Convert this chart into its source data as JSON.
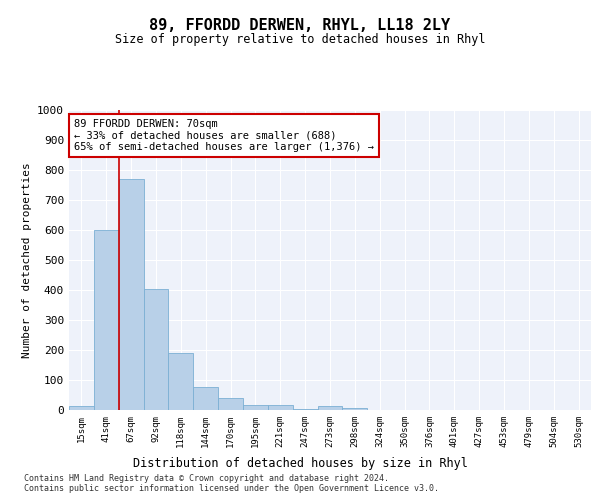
{
  "title": "89, FFORDD DERWEN, RHYL, LL18 2LY",
  "subtitle": "Size of property relative to detached houses in Rhyl",
  "xlabel": "Distribution of detached houses by size in Rhyl",
  "ylabel": "Number of detached properties",
  "categories": [
    "15sqm",
    "41sqm",
    "67sqm",
    "92sqm",
    "118sqm",
    "144sqm",
    "170sqm",
    "195sqm",
    "221sqm",
    "247sqm",
    "273sqm",
    "298sqm",
    "324sqm",
    "350sqm",
    "376sqm",
    "401sqm",
    "427sqm",
    "453sqm",
    "479sqm",
    "504sqm",
    "530sqm"
  ],
  "values": [
    15,
    600,
    770,
    405,
    190,
    77,
    40,
    18,
    16,
    5,
    13,
    7,
    0,
    0,
    0,
    0,
    0,
    0,
    0,
    0,
    0
  ],
  "bar_color": "#b8d0e8",
  "bar_edge_color": "#7bafd4",
  "vline_pos": 1.5,
  "vline_color": "#cc0000",
  "annotation_text": "89 FFORDD DERWEN: 70sqm\n← 33% of detached houses are smaller (688)\n65% of semi-detached houses are larger (1,376) →",
  "annotation_box_edgecolor": "#cc0000",
  "ylim": [
    0,
    1000
  ],
  "yticks": [
    0,
    100,
    200,
    300,
    400,
    500,
    600,
    700,
    800,
    900,
    1000
  ],
  "bg_color": "#eef2fa",
  "grid_color": "#ffffff",
  "footer_line1": "Contains HM Land Registry data © Crown copyright and database right 2024.",
  "footer_line2": "Contains public sector information licensed under the Open Government Licence v3.0."
}
